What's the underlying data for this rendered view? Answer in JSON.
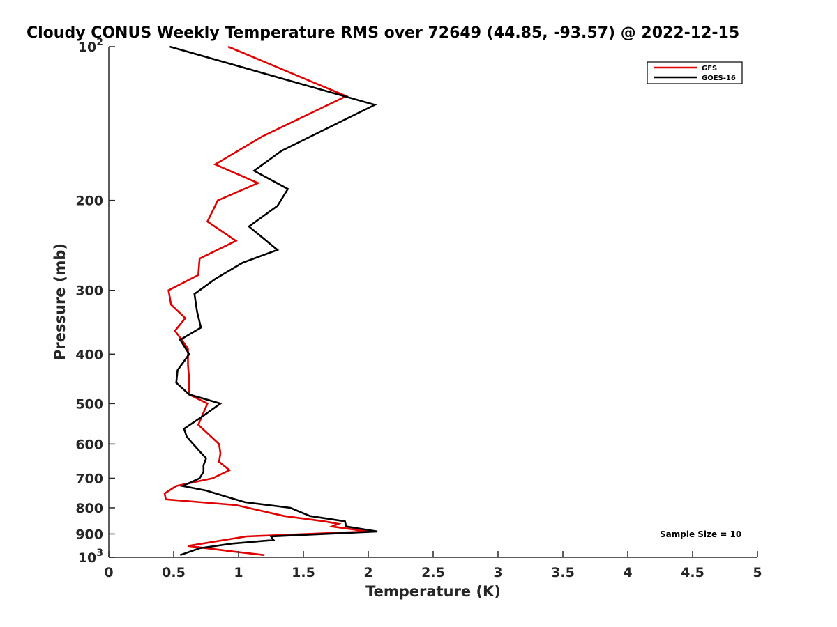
{
  "chart_data": {
    "type": "line",
    "title": "Cloudy CONUS Weekly Temperature RMS over 72649 (44.85, -93.57) @ 2022-12-15",
    "xlabel": "Temperature (K)",
    "ylabel": "Pressure (mb)",
    "xlim": [
      0,
      5
    ],
    "ylim": [
      100,
      1000
    ],
    "yscale": "log",
    "yreversed": true,
    "xticks": [
      "0",
      "0.5",
      "1",
      "1.5",
      "2",
      "2.5",
      "3",
      "3.5",
      "4",
      "4.5",
      "5"
    ],
    "yticks": [
      {
        "value": 100,
        "base": "10",
        "exp": "2"
      },
      {
        "value": 200,
        "label": "200"
      },
      {
        "value": 300,
        "label": "300"
      },
      {
        "value": 400,
        "label": "400"
      },
      {
        "value": 500,
        "label": "500"
      },
      {
        "value": 600,
        "label": "600"
      },
      {
        "value": 700,
        "label": "700"
      },
      {
        "value": 800,
        "label": "800"
      },
      {
        "value": 900,
        "label": "900"
      },
      {
        "value": 1000,
        "base": "10",
        "exp": "3"
      }
    ],
    "grid": false,
    "legend_position": "top-right",
    "annotation": "Sample Size = 10",
    "series": [
      {
        "name": "GFS",
        "color": "#e00000",
        "points": [
          [
            0.92,
            100
          ],
          [
            1.83,
            125
          ],
          [
            1.18,
            150
          ],
          [
            0.82,
            170
          ],
          [
            1.15,
            185
          ],
          [
            0.84,
            200
          ],
          [
            0.76,
            220
          ],
          [
            0.98,
            240
          ],
          [
            0.7,
            260
          ],
          [
            0.69,
            280
          ],
          [
            0.46,
            300
          ],
          [
            0.48,
            320
          ],
          [
            0.59,
            340
          ],
          [
            0.51,
            360
          ],
          [
            0.61,
            390
          ],
          [
            0.61,
            420
          ],
          [
            0.62,
            450
          ],
          [
            0.62,
            480
          ],
          [
            0.76,
            500
          ],
          [
            0.69,
            550
          ],
          [
            0.85,
            600
          ],
          [
            0.86,
            625
          ],
          [
            0.85,
            650
          ],
          [
            0.93,
            675
          ],
          [
            0.8,
            700
          ],
          [
            0.52,
            725
          ],
          [
            0.43,
            750
          ],
          [
            0.44,
            770
          ],
          [
            0.98,
            790
          ],
          [
            1.35,
            830
          ],
          [
            1.66,
            850
          ],
          [
            1.77,
            860
          ],
          [
            1.72,
            870
          ],
          [
            2.0,
            890
          ],
          [
            1.06,
            910
          ],
          [
            0.61,
            950
          ],
          [
            0.97,
            975
          ],
          [
            1.2,
            990
          ]
        ]
      },
      {
        "name": "GOES-16",
        "color": "#000000",
        "points": [
          [
            0.47,
            100
          ],
          [
            2.05,
            130
          ],
          [
            1.33,
            160
          ],
          [
            1.12,
            175
          ],
          [
            1.38,
            190
          ],
          [
            1.3,
            205
          ],
          [
            1.08,
            225
          ],
          [
            1.3,
            250
          ],
          [
            1.03,
            265
          ],
          [
            0.82,
            285
          ],
          [
            0.66,
            305
          ],
          [
            0.68,
            330
          ],
          [
            0.71,
            355
          ],
          [
            0.55,
            375
          ],
          [
            0.62,
            400
          ],
          [
            0.53,
            430
          ],
          [
            0.52,
            455
          ],
          [
            0.62,
            480
          ],
          [
            0.86,
            500
          ],
          [
            0.72,
            530
          ],
          [
            0.58,
            560
          ],
          [
            0.6,
            580
          ],
          [
            0.65,
            600
          ],
          [
            0.7,
            620
          ],
          [
            0.75,
            640
          ],
          [
            0.73,
            660
          ],
          [
            0.73,
            680
          ],
          [
            0.7,
            700
          ],
          [
            0.57,
            725
          ],
          [
            0.75,
            740
          ],
          [
            0.9,
            760
          ],
          [
            1.05,
            780
          ],
          [
            1.4,
            800
          ],
          [
            1.55,
            830
          ],
          [
            1.82,
            850
          ],
          [
            1.83,
            870
          ],
          [
            2.07,
            890
          ],
          [
            1.25,
            910
          ],
          [
            1.27,
            925
          ],
          [
            0.95,
            940
          ],
          [
            0.7,
            960
          ],
          [
            0.55,
            990
          ]
        ]
      }
    ]
  }
}
